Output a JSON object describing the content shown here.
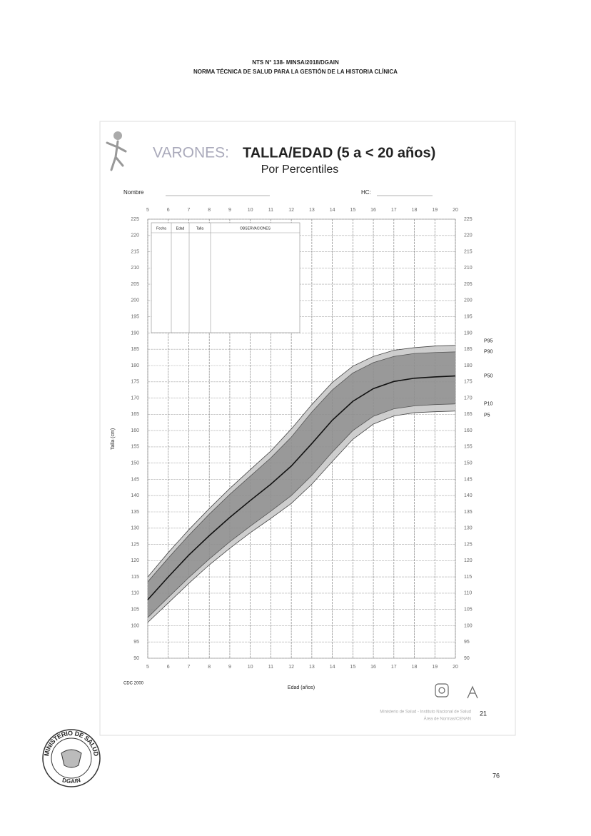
{
  "header": {
    "line1": "NTS N° 138- MINSA/2018/DGAIN",
    "line2": "NORMA TÉCNICA DE SALUD PARA LA GESTIÓN DE LA HISTORIA CLÍNICA"
  },
  "chart_data": {
    "type": "line",
    "title_prefix": "VARONES:",
    "title": "TALLA/EDAD (5 a < 20 años)",
    "subtitle": "Por Percentiles",
    "name_label": "Nombre",
    "hc_label": "HC:",
    "table_headers": [
      "Fecha",
      "Edad",
      "Talla",
      "OBSERVACIONES"
    ],
    "xlabel": "Edad (años)",
    "ylabel": "Talla (cm)",
    "source": "CDC 2000",
    "footer": [
      "Ministerio de Salud - Instituto Nacional de Salud",
      "Área de Normas/CENAN"
    ],
    "footer_page": "21",
    "x": [
      5,
      6,
      7,
      8,
      9,
      10,
      11,
      12,
      13,
      14,
      15,
      16,
      17,
      18,
      19,
      20
    ],
    "xlim": [
      5,
      20
    ],
    "xticks": [
      5,
      6,
      7,
      8,
      9,
      10,
      11,
      12,
      13,
      14,
      15,
      16,
      17,
      18,
      19,
      20
    ],
    "ylim": [
      90,
      225
    ],
    "yticks": [
      90,
      95,
      100,
      105,
      110,
      115,
      120,
      125,
      130,
      135,
      140,
      145,
      150,
      155,
      160,
      165,
      170,
      175,
      180,
      185,
      190,
      195,
      200,
      205,
      210,
      215,
      220,
      225
    ],
    "grid": true,
    "band_colors": [
      "#c9c9c9",
      "#8e8e8e",
      "#8e8e8e",
      "#c9c9c9"
    ],
    "series": [
      {
        "name": "P5",
        "color": "#444444",
        "values": [
          101,
          107,
          113,
          118.7,
          123.8,
          128.6,
          133,
          137.6,
          143.5,
          150.5,
          157.3,
          162,
          164.5,
          165.5,
          165.8,
          166
        ]
      },
      {
        "name": "P10",
        "color": "#555555",
        "values": [
          102.5,
          108.7,
          114.8,
          120.5,
          125.8,
          130.6,
          135.2,
          140,
          146.2,
          153.4,
          160,
          164.4,
          166.7,
          167.6,
          168,
          168.2
        ]
      },
      {
        "name": "P50",
        "color": "#111111",
        "values": [
          108,
          115,
          121.7,
          127.7,
          133.3,
          138.5,
          143.5,
          149.1,
          156,
          163.2,
          169,
          172.9,
          175.1,
          176.1,
          176.5,
          176.8
        ]
      },
      {
        "name": "P90",
        "color": "#555555",
        "values": [
          113.5,
          120.8,
          127.8,
          134.3,
          140.4,
          146,
          151.6,
          158,
          165.7,
          172.5,
          177.7,
          180.9,
          182.8,
          183.7,
          184,
          184.2
        ]
      },
      {
        "name": "P95",
        "color": "#444444",
        "values": [
          115,
          122.5,
          129.5,
          136,
          142.2,
          148,
          153.7,
          160.5,
          168,
          174.8,
          179.8,
          182.8,
          184.7,
          185.5,
          186,
          186.2
        ]
      }
    ]
  },
  "seal": {
    "top": "MINISTERIO DE SALUD",
    "bottom": "DGAIN"
  },
  "page_number": "76"
}
